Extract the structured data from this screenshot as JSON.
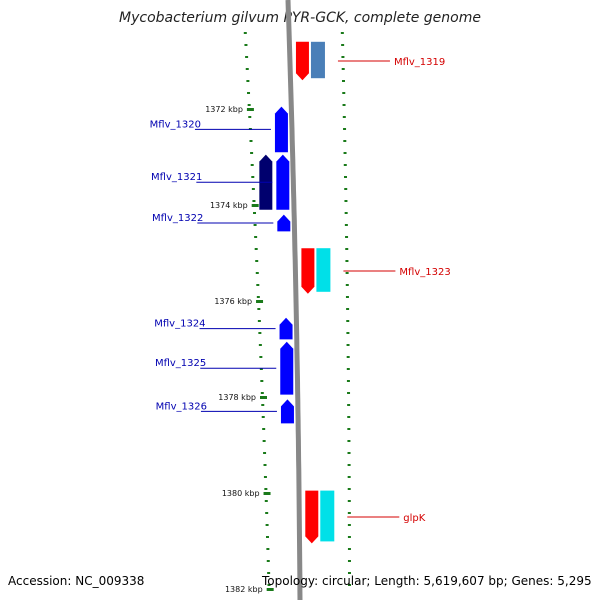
{
  "title": "Mycobacterium gilvum PYR-GCK, complete genome",
  "footer": {
    "accession": "Accession: NC_009338",
    "summary": "Topology: circular; Length: 5,619,607 bp; Genes: 5,295"
  },
  "colors": {
    "forward_label": "#d40000",
    "reverse_label": "#0000b0",
    "tick": "#1a7a1a",
    "backbone": "#888888"
  },
  "scale": [
    {
      "kbp": 1372,
      "label": "1372 kbp"
    },
    {
      "kbp": 1374,
      "label": "1374 kbp"
    },
    {
      "kbp": 1376,
      "label": "1376 kbp"
    },
    {
      "kbp": 1378,
      "label": "1378 kbp"
    },
    {
      "kbp": 1380,
      "label": "1380 kbp"
    },
    {
      "kbp": 1382,
      "label": "1382 kbp"
    }
  ],
  "genes": [
    {
      "name": "Mflv_1319",
      "strand": "forward",
      "start_kbp": 1370.6,
      "end_kbp": 1371.4
    },
    {
      "name": "Mflv_1320",
      "strand": "reverse",
      "start_kbp": 1371.95,
      "end_kbp": 1372.9
    },
    {
      "name": "Mflv_1321",
      "strand": "reverse",
      "start_kbp": 1372.95,
      "end_kbp": 1374.1
    },
    {
      "name": "Mflv_1322",
      "strand": "reverse",
      "start_kbp": 1374.2,
      "end_kbp": 1374.55
    },
    {
      "name": "Mflv_1323",
      "strand": "forward",
      "start_kbp": 1374.9,
      "end_kbp": 1375.85
    },
    {
      "name": "Mflv_1324",
      "strand": "reverse",
      "start_kbp": 1376.35,
      "end_kbp": 1376.8
    },
    {
      "name": "Mflv_1325",
      "strand": "reverse",
      "start_kbp": 1376.85,
      "end_kbp": 1377.95
    },
    {
      "name": "Mflv_1326",
      "strand": "reverse",
      "start_kbp": 1378.05,
      "end_kbp": 1378.55
    },
    {
      "name": "glpK",
      "strand": "forward",
      "start_kbp": 1379.95,
      "end_kbp": 1381.05
    }
  ]
}
